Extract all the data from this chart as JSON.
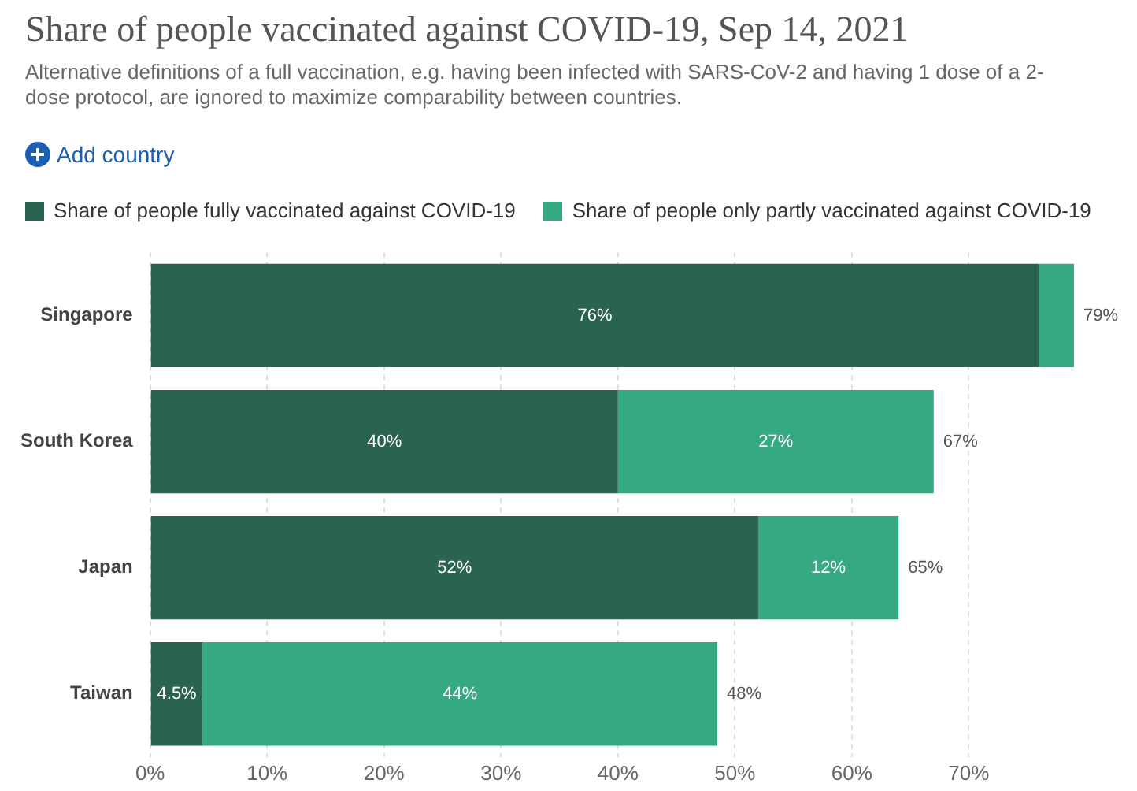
{
  "chart_data": {
    "type": "bar",
    "orientation": "horizontal",
    "stacked": true,
    "title": "Share of people vaccinated against COVID-19, Sep 14, 2021",
    "subtitle": "Alternative definitions of a full vaccination, e.g. having been infected with SARS-CoV-2 and having 1 dose of a 2-dose protocol, are ignored to maximize comparability between countries.",
    "categories": [
      "Singapore",
      "South Korea",
      "Japan",
      "Taiwan"
    ],
    "series": [
      {
        "name": "Share of people fully vaccinated against COVID-19",
        "color": "#2a6450",
        "values": [
          76,
          40,
          52,
          4.5
        ],
        "value_labels": [
          "76%",
          "40%",
          "52%",
          "4.5%"
        ]
      },
      {
        "name": "Share of people only partly vaccinated against COVID-19",
        "color": "#34a983",
        "values": [
          3,
          27,
          12,
          44
        ],
        "value_labels": [
          null,
          "27%",
          "12%",
          "44%"
        ]
      }
    ],
    "totals": [
      "79%",
      "67%",
      "65%",
      "48%"
    ],
    "xlim": [
      0,
      79
    ],
    "xticks": [
      {
        "value": 0,
        "label": "0%"
      },
      {
        "value": 10,
        "label": "10%"
      },
      {
        "value": 20,
        "label": "20%"
      },
      {
        "value": 30,
        "label": "30%"
      },
      {
        "value": 40,
        "label": "40%"
      },
      {
        "value": 50,
        "label": "50%"
      },
      {
        "value": 60,
        "label": "60%"
      },
      {
        "value": 70,
        "label": "70%"
      }
    ],
    "annotations": [
      "Add country"
    ],
    "grid": "x",
    "legend": "top"
  }
}
